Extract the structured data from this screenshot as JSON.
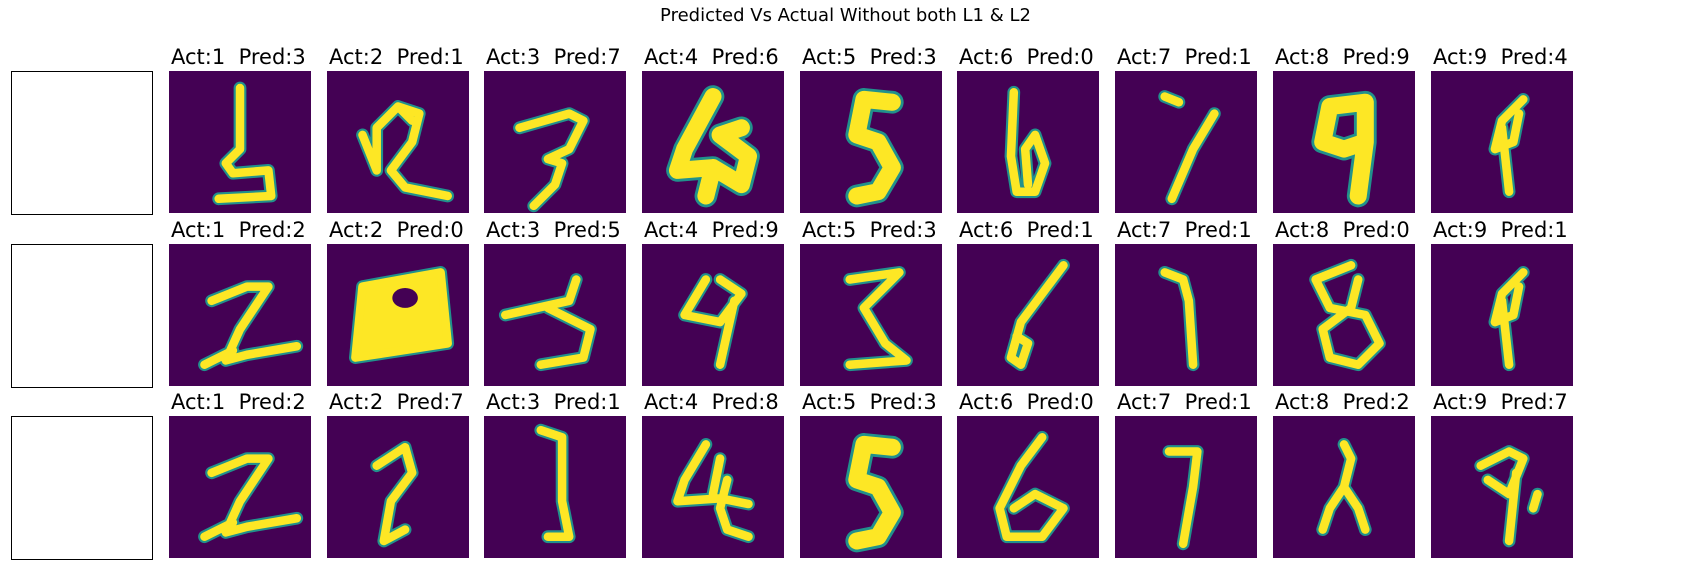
{
  "figure": {
    "title": "Predicted Vs Actual Without both L1 & L2",
    "colormap": [
      "#440154",
      "#21918c",
      "#fde725"
    ],
    "empty_axes_per_row": 1
  },
  "rows": [
    {
      "panels": [
        {
          "actual": "1",
          "pred": "3",
          "label": "Act:1  Pred:3",
          "glyph": "3-like"
        },
        {
          "actual": "2",
          "pred": "1",
          "label": "Act:2  Pred:1",
          "glyph": "R-like"
        },
        {
          "actual": "3",
          "pred": "7",
          "label": "Act:3  Pred:7",
          "glyph": "3"
        },
        {
          "actual": "4",
          "pred": "6",
          "label": "Act:4  Pred:6",
          "glyph": "4-thick"
        },
        {
          "actual": "5",
          "pred": "3",
          "label": "Act:5  Pred:3",
          "glyph": "5-thick"
        },
        {
          "actual": "6",
          "pred": "0",
          "label": "Act:6  Pred:0",
          "glyph": "6-narrow"
        },
        {
          "actual": "7",
          "pred": "1",
          "label": "Act:7  Pred:1",
          "glyph": "7-thin"
        },
        {
          "actual": "8",
          "pred": "9",
          "label": "Act:8  Pred:9",
          "glyph": "8-blob"
        },
        {
          "actual": "9",
          "pred": "4",
          "label": "Act:9  Pred:4",
          "glyph": "9-thin"
        }
      ]
    },
    {
      "panels": [
        {
          "actual": "1",
          "pred": "2",
          "label": "Act:1  Pred:2",
          "glyph": "2-italic"
        },
        {
          "actual": "2",
          "pred": "0",
          "label": "Act:2  Pred:0",
          "glyph": "blob-0"
        },
        {
          "actual": "3",
          "pred": "5",
          "label": "Act:3  Pred:5",
          "glyph": "5-wide"
        },
        {
          "actual": "4",
          "pred": "9",
          "label": "Act:4  Pred:9",
          "glyph": "4-9"
        },
        {
          "actual": "5",
          "pred": "3",
          "label": "Act:5  Pred:3",
          "glyph": "3-thin"
        },
        {
          "actual": "6",
          "pred": "1",
          "label": "Act:6  Pred:1",
          "glyph": "6-thin"
        },
        {
          "actual": "7",
          "pred": "1",
          "label": "Act:7  Pred:1",
          "glyph": "7-curve"
        },
        {
          "actual": "8",
          "pred": "0",
          "label": "Act:8  Pred:0",
          "glyph": "8"
        },
        {
          "actual": "9",
          "pred": "1",
          "label": "Act:9  Pred:1",
          "glyph": "9-thin"
        }
      ]
    },
    {
      "panels": [
        {
          "actual": "1",
          "pred": "2",
          "label": "Act:1  Pred:2",
          "glyph": "2-italic"
        },
        {
          "actual": "2",
          "pred": "7",
          "label": "Act:2  Pred:7",
          "glyph": "2-thin"
        },
        {
          "actual": "3",
          "pred": "1",
          "label": "Act:3  Pred:1",
          "glyph": "J"
        },
        {
          "actual": "4",
          "pred": "8",
          "label": "Act:4  Pred:8",
          "glyph": "4-fancy"
        },
        {
          "actual": "5",
          "pred": "3",
          "label": "Act:5  Pred:3",
          "glyph": "5-thick"
        },
        {
          "actual": "6",
          "pred": "0",
          "label": "Act:6  Pred:0",
          "glyph": "6"
        },
        {
          "actual": "7",
          "pred": "1",
          "label": "Act:7  Pred:1",
          "glyph": "7-thin2"
        },
        {
          "actual": "8",
          "pred": "2",
          "label": "Act:8  Pred:2",
          "glyph": "8-thin"
        },
        {
          "actual": "9",
          "pred": "7",
          "label": "Act:9  Pred:7",
          "glyph": "9-noisy"
        }
      ]
    }
  ]
}
